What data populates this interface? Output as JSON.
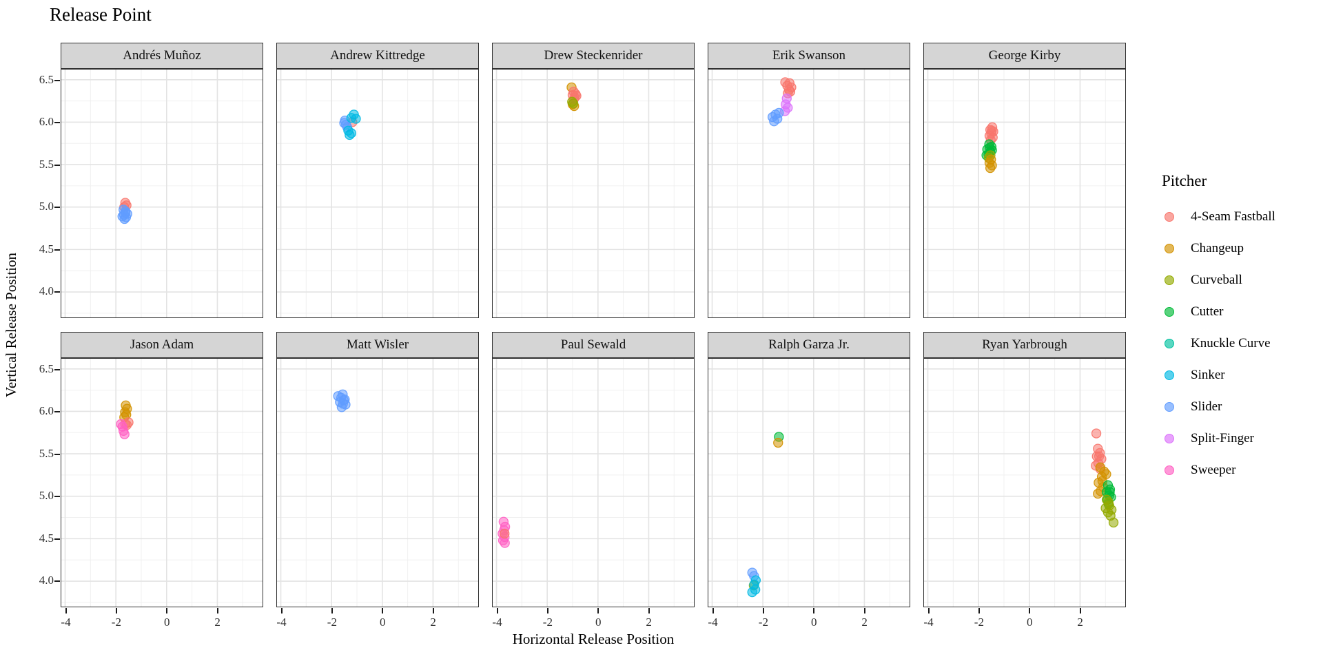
{
  "title": "Release Point",
  "chart_data": {
    "type": "scatter",
    "title": "Release Point",
    "xlabel": "Horizontal Release Position",
    "ylabel": "Vertical Release Position",
    "legend_title": "Pitcher",
    "legend_position": "right",
    "grid": "on",
    "xlim": [
      -4.15,
      3.78
    ],
    "ylim": [
      3.7,
      6.62
    ],
    "x_ticks": [
      -4,
      -2,
      0,
      2
    ],
    "y_ticks": [
      6.5,
      6.0,
      5.5,
      5.0,
      4.5,
      4.0
    ],
    "x_minor_ticks": [
      -3,
      -1,
      1,
      3
    ],
    "y_minor_ticks": [
      6.25,
      5.75,
      5.25,
      4.75,
      4.25,
      3.75
    ],
    "strip_bg": "#D5D5D5",
    "panel_border": "#2F2F2F",
    "grid_major_color": "#E3E3E3",
    "grid_minor_color": "#F0F0F0",
    "point_alpha": 0.55,
    "pitch_types": [
      {
        "name": "4-Seam Fastball",
        "color": "#F8766D"
      },
      {
        "name": "Changeup",
        "color": "#D39200"
      },
      {
        "name": "Curveball",
        "color": "#93AA00"
      },
      {
        "name": "Cutter",
        "color": "#00BA38"
      },
      {
        "name": "Knuckle Curve",
        "color": "#00C19F"
      },
      {
        "name": "Sinker",
        "color": "#00B9E3"
      },
      {
        "name": "Slider",
        "color": "#619CFF"
      },
      {
        "name": "Split-Finger",
        "color": "#DB72FB"
      },
      {
        "name": "Sweeper",
        "color": "#FF61C3"
      }
    ],
    "facets": [
      {
        "label": "Andrés Muñoz",
        "series": {
          "4-Seam Fastball": [
            [
              -1.63,
              5.05
            ],
            [
              -1.58,
              5.02
            ],
            [
              -1.67,
              5.0
            ]
          ],
          "Slider": [
            [
              -1.7,
              4.97
            ],
            [
              -1.62,
              4.95
            ],
            [
              -1.55,
              4.92
            ],
            [
              -1.68,
              4.91
            ],
            [
              -1.74,
              4.89
            ],
            [
              -1.6,
              4.88
            ],
            [
              -1.66,
              4.86
            ],
            [
              -1.63,
              4.93
            ]
          ]
        }
      },
      {
        "label": "Andrew Kittredge",
        "series": {
          "4-Seam Fastball": [
            [
              -1.18,
              6.0
            ]
          ],
          "Slider": [
            [
              -1.5,
              5.99
            ],
            [
              -1.43,
              5.97
            ],
            [
              -1.38,
              5.94
            ],
            [
              -1.47,
              6.02
            ]
          ],
          "Sinker": [
            [
              -1.12,
              6.09
            ],
            [
              -1.22,
              6.05
            ],
            [
              -1.04,
              6.04
            ],
            [
              -1.34,
              5.9
            ],
            [
              -1.22,
              5.87
            ],
            [
              -1.29,
              5.85
            ]
          ]
        }
      },
      {
        "label": "Drew Steckenrider",
        "series": {
          "Changeup": [
            [
              -1.04,
              6.41
            ],
            [
              -1.0,
              6.21
            ],
            [
              -0.94,
              6.19
            ]
          ],
          "4-Seam Fastball": [
            [
              -0.96,
              6.36
            ],
            [
              -0.88,
              6.33
            ],
            [
              -1.0,
              6.32
            ],
            [
              -0.92,
              6.29
            ],
            [
              -0.85,
              6.31
            ],
            [
              -0.95,
              6.27
            ]
          ],
          "Curveball": [
            [
              -1.02,
              6.24
            ],
            [
              -0.97,
              6.22
            ]
          ]
        }
      },
      {
        "label": "Erik Swanson",
        "series": {
          "4-Seam Fastball": [
            [
              -1.12,
              6.47
            ],
            [
              -0.95,
              6.46
            ],
            [
              -1.04,
              6.43
            ],
            [
              -0.88,
              6.41
            ],
            [
              -0.97,
              6.38
            ],
            [
              -0.92,
              6.36
            ],
            [
              -1.02,
              6.34
            ]
          ],
          "Split-Finger": [
            [
              -1.06,
              6.28
            ],
            [
              -1.1,
              6.21
            ],
            [
              -1.02,
              6.17
            ],
            [
              -1.13,
              6.13
            ]
          ],
          "Slider": [
            [
              -1.62,
              6.06
            ],
            [
              -1.5,
              6.09
            ],
            [
              -1.43,
              6.04
            ],
            [
              -1.56,
              6.01
            ],
            [
              -1.37,
              6.11
            ]
          ]
        }
      },
      {
        "label": "George Kirby",
        "series": {
          "4-Seam Fastball": [
            [
              -1.46,
              5.94
            ],
            [
              -1.54,
              5.91
            ],
            [
              -1.42,
              5.89
            ],
            [
              -1.5,
              5.87
            ],
            [
              -1.57,
              5.84
            ],
            [
              -1.44,
              5.82
            ],
            [
              -1.52,
              5.79
            ],
            [
              -1.48,
              5.9
            ]
          ],
          "Cutter": [
            [
              -1.58,
              5.74
            ],
            [
              -1.49,
              5.71
            ],
            [
              -1.66,
              5.68
            ],
            [
              -1.54,
              5.65
            ],
            [
              -1.61,
              5.62
            ],
            [
              -1.47,
              5.67
            ],
            [
              -1.69,
              5.61
            ],
            [
              -1.56,
              5.7
            ]
          ],
          "Curveball": [
            [
              -1.6,
              5.58
            ],
            [
              -1.53,
              5.61
            ]
          ],
          "Changeup": [
            [
              -1.51,
              5.56
            ],
            [
              -1.57,
              5.52
            ],
            [
              -1.47,
              5.49
            ],
            [
              -1.54,
              5.46
            ]
          ]
        }
      },
      {
        "label": "Jason Adam",
        "series": {
          "Changeup": [
            [
              -1.61,
              6.07
            ],
            [
              -1.56,
              6.03
            ],
            [
              -1.64,
              5.99
            ],
            [
              -1.59,
              5.96
            ],
            [
              -1.67,
              5.93
            ]
          ],
          "4-Seam Fastball": [
            [
              -1.5,
              5.87
            ],
            [
              -1.57,
              5.84
            ],
            [
              -1.63,
              5.85
            ]
          ],
          "Sweeper": [
            [
              -1.8,
              5.85
            ],
            [
              -1.74,
              5.82
            ],
            [
              -1.7,
              5.77
            ],
            [
              -1.66,
              5.73
            ]
          ]
        }
      },
      {
        "label": "Matt Wisler",
        "series": {
          "Slider": [
            [
              -1.74,
              6.18
            ],
            [
              -1.56,
              6.2
            ],
            [
              -1.62,
              6.16
            ],
            [
              -1.48,
              6.14
            ],
            [
              -1.67,
              6.11
            ],
            [
              -1.55,
              6.09
            ],
            [
              -1.45,
              6.08
            ],
            [
              -1.6,
              6.05
            ],
            [
              -1.52,
              6.13
            ]
          ]
        }
      },
      {
        "label": "Paul Sewald",
        "series": {
          "Sweeper": [
            [
              -3.72,
              4.7
            ],
            [
              -3.66,
              4.64
            ],
            [
              -3.7,
              4.6
            ],
            [
              -3.76,
              4.56
            ],
            [
              -3.68,
              4.52
            ],
            [
              -3.74,
              4.48
            ],
            [
              -3.67,
              4.45
            ]
          ],
          "4-Seam Fastball": [
            [
              -3.68,
              4.56
            ]
          ]
        }
      },
      {
        "label": "Ralph Garza Jr.",
        "series": {
          "Cutter": [
            [
              -1.37,
              5.7
            ]
          ],
          "Changeup": [
            [
              -1.4,
              5.63
            ]
          ],
          "Slider": [
            [
              -2.42,
              4.1
            ],
            [
              -2.35,
              4.06
            ]
          ],
          "Curveball": [
            [
              -2.36,
              3.95
            ]
          ],
          "Sinker": [
            [
              -2.28,
              4.01
            ],
            [
              -2.34,
              3.96
            ],
            [
              -2.3,
              3.9
            ],
            [
              -2.42,
              3.87
            ]
          ]
        }
      },
      {
        "label": "Ryan Yarbrough",
        "series": {
          "4-Seam Fastball": [
            [
              2.64,
              5.74
            ],
            [
              2.7,
              5.56
            ],
            [
              2.78,
              5.51
            ],
            [
              2.66,
              5.47
            ],
            [
              2.84,
              5.44
            ],
            [
              2.72,
              5.39
            ],
            [
              2.62,
              5.36
            ],
            [
              2.8,
              5.32
            ],
            [
              2.75,
              5.47
            ]
          ],
          "Changeup": [
            [
              2.8,
              5.34
            ],
            [
              2.95,
              5.29
            ],
            [
              2.86,
              5.23
            ],
            [
              2.73,
              5.16
            ],
            [
              2.91,
              5.11
            ],
            [
              2.81,
              5.06
            ],
            [
              2.7,
              5.03
            ],
            [
              3.03,
              5.26
            ],
            [
              2.88,
              5.18
            ]
          ],
          "Cutter": [
            [
              3.1,
              5.13
            ],
            [
              3.18,
              5.08
            ],
            [
              3.05,
              5.05
            ],
            [
              3.15,
              5.01
            ],
            [
              3.08,
              4.96
            ],
            [
              3.22,
              4.99
            ],
            [
              3.12,
              4.91
            ],
            [
              3.17,
              5.05
            ]
          ],
          "Curveball": [
            [
              3.05,
              4.96
            ],
            [
              3.15,
              4.89
            ],
            [
              3.01,
              4.86
            ],
            [
              3.1,
              4.81
            ],
            [
              3.2,
              4.77
            ],
            [
              3.32,
              4.69
            ],
            [
              3.12,
              4.93
            ],
            [
              3.24,
              4.84
            ]
          ]
        }
      }
    ]
  }
}
